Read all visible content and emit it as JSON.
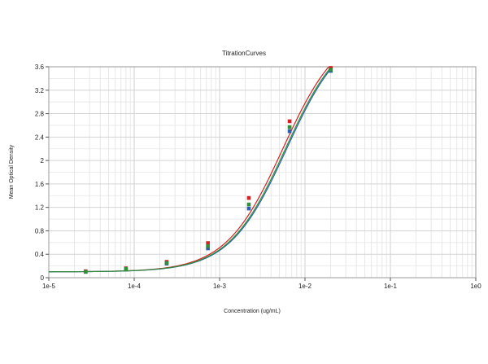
{
  "chart_data": {
    "type": "scatter",
    "title": "TitrationCurves",
    "xlabel": "Concentration (ug/mL)",
    "ylabel": "Mean Optical Density",
    "x_scale": "log",
    "xlim": [
      1e-05,
      1
    ],
    "ylim": [
      0,
      3.6
    ],
    "x_ticks": [
      1e-05,
      0.0001,
      0.001,
      0.01,
      0.1,
      1
    ],
    "x_tick_labels": [
      "1e-5",
      "1e-4",
      "1e-3",
      "1e-2",
      "1e-1",
      "1e0"
    ],
    "y_ticks": [
      0,
      0.4,
      0.8,
      1.2,
      1.6,
      2,
      2.4,
      2.8,
      3.2,
      3.6
    ],
    "y_tick_labels": [
      "0",
      "0.4",
      "0.8",
      "1.2",
      "1.6",
      "2",
      "2.4",
      "2.8",
      "3.2",
      "3.6"
    ],
    "grid": true,
    "legend": "none",
    "curve_min": 0.1,
    "curve_max": 4.3,
    "curve_slope": 1.3,
    "series": [
      {
        "color": "#d92121",
        "ec50": 0.0055,
        "x": [
          2.7e-05,
          8e-05,
          0.00024,
          0.00073,
          0.0022,
          0.0066,
          0.02
        ],
        "y": [
          0.11,
          0.16,
          0.27,
          0.59,
          1.36,
          2.67,
          3.58
        ]
      },
      {
        "color": "#2b5fb0",
        "ec50": 0.0061,
        "x": [
          2.7e-05,
          8e-05,
          0.00024,
          0.00073,
          0.0022,
          0.0066,
          0.02
        ],
        "y": [
          0.1,
          0.15,
          0.24,
          0.5,
          1.18,
          2.5,
          3.53
        ]
      },
      {
        "color": "#2f8f3a",
        "ec50": 0.0059,
        "x": [
          2.7e-05,
          8e-05,
          0.00024,
          0.00073,
          0.0022,
          0.0066,
          0.02
        ],
        "y": [
          0.1,
          0.15,
          0.25,
          0.54,
          1.25,
          2.57,
          3.55
        ]
      }
    ]
  }
}
